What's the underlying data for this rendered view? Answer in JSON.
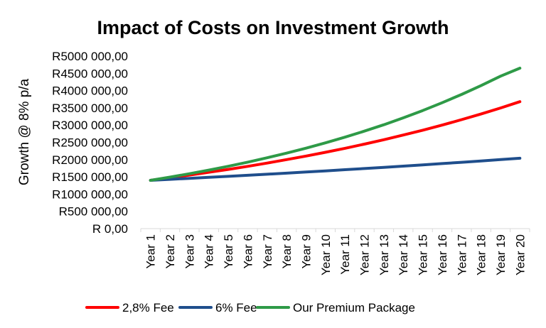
{
  "chart_data": {
    "type": "line",
    "title": "Impact of Costs on Investment Growth",
    "xlabel": "",
    "ylabel": "Growth @ 8% p/a",
    "ylim": [
      0,
      5000000
    ],
    "yticks": [
      "R 0,00",
      "R500 000,00",
      "R1000 000,00",
      "R1500 000,00",
      "R2000 000,00",
      "R2500 000,00",
      "R3000 000,00",
      "R3500 000,00",
      "R4000 000,00",
      "R4500 000,00",
      "R5000 000,00"
    ],
    "categories": [
      "Year 1",
      "Year 2",
      "Year 3",
      "Year 4",
      "Year 5",
      "Year 6",
      "Year 7",
      "Year 8",
      "Year 9",
      "Year 10",
      "Year 11",
      "Year 12",
      "Year 13",
      "Year 14",
      "Year 15",
      "Year 16",
      "Year 17",
      "Year 18",
      "Year 19",
      "Year 20"
    ],
    "grid": false,
    "legend_position": "bottom",
    "series": [
      {
        "name": "2,8% Fee",
        "color": "#ff0000",
        "values": [
          1400000,
          1473000,
          1550000,
          1631000,
          1716000,
          1805000,
          1900000,
          1999000,
          2103000,
          2212000,
          2328000,
          2449000,
          2577000,
          2711000,
          2852000,
          3001000,
          3158000,
          3322000,
          3495000,
          3678000
        ]
      },
      {
        "name": "6% Fee",
        "color": "#1f4e8c",
        "values": [
          1400000,
          1428000,
          1457000,
          1486000,
          1515000,
          1546000,
          1577000,
          1608000,
          1640000,
          1673000,
          1707000,
          1741000,
          1776000,
          1811000,
          1847000,
          1884000,
          1922000,
          1960000,
          1999000,
          2039000
        ]
      },
      {
        "name": "Our Premium Package",
        "color": "#2e9a47",
        "values": [
          1400000,
          1492000,
          1590000,
          1695000,
          1807000,
          1926000,
          2053000,
          2188000,
          2332000,
          2486000,
          2650000,
          2825000,
          3011000,
          3210000,
          3422000,
          3648000,
          3888000,
          4145000,
          4418000,
          4650000
        ]
      }
    ]
  }
}
